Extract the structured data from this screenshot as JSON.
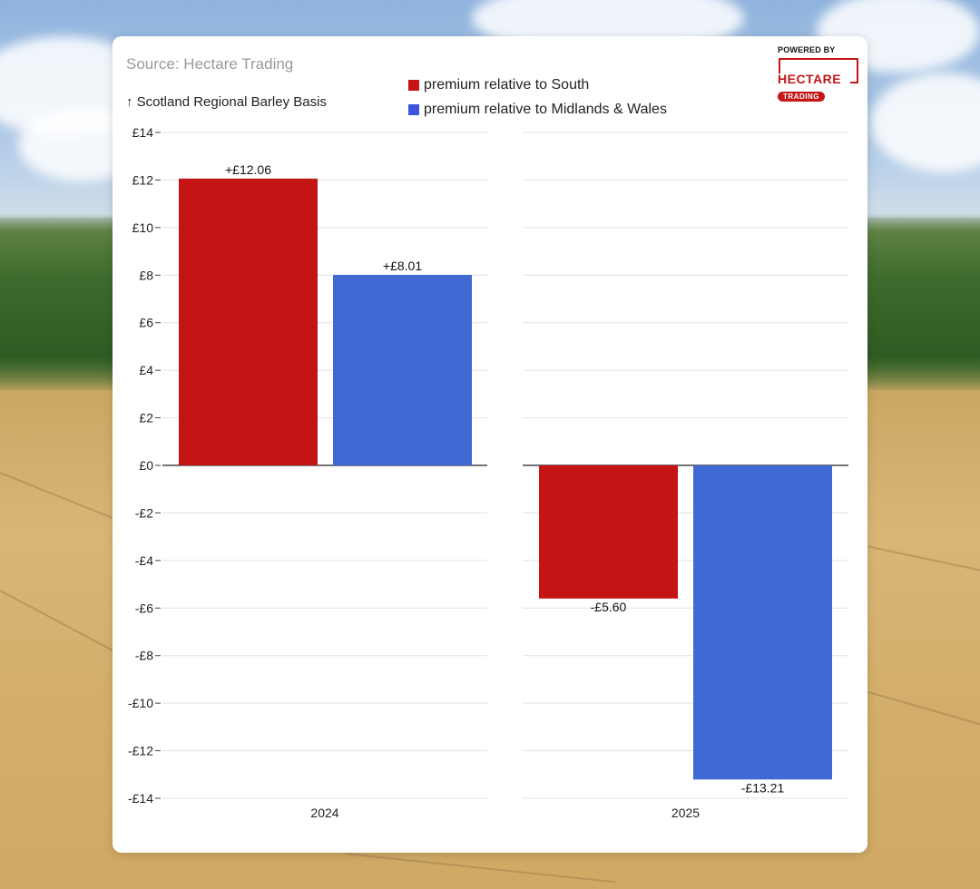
{
  "source_label": "Source: Hectare Trading",
  "logo": {
    "powered_by": "POWERED BY",
    "brand": "HECTARE",
    "sub": "TRADING"
  },
  "colors": {
    "south": "#c41414",
    "midlands": "#4169d4",
    "brand": "#c41617"
  },
  "chart_data": {
    "type": "bar",
    "title": "",
    "ylabel": "↑ Scotland Regional Barley Basis",
    "xlabel": "",
    "ylim": [
      -14,
      14
    ],
    "yticks": [
      14,
      12,
      10,
      8,
      6,
      4,
      2,
      0,
      -2,
      -4,
      -6,
      -8,
      -10,
      -12,
      -14
    ],
    "ytick_labels": [
      "£14",
      "£12",
      "£10",
      "£8",
      "£6",
      "£4",
      "£2",
      "£0",
      "-£2",
      "-£4",
      "-£6",
      "-£8",
      "-£10",
      "-£12",
      "-£14"
    ],
    "legend_position": "top-center",
    "categories": [
      "2024",
      "2025"
    ],
    "series": [
      {
        "name": "premium relative to South",
        "values": [
          12.06,
          -5.6
        ],
        "labels": [
          "+£12.06",
          "-£5.60"
        ]
      },
      {
        "name": "premium relative to Midlands & Wales",
        "values": [
          8.01,
          -13.21
        ],
        "labels": [
          "+£8.01",
          "-£13.21"
        ]
      }
    ]
  }
}
